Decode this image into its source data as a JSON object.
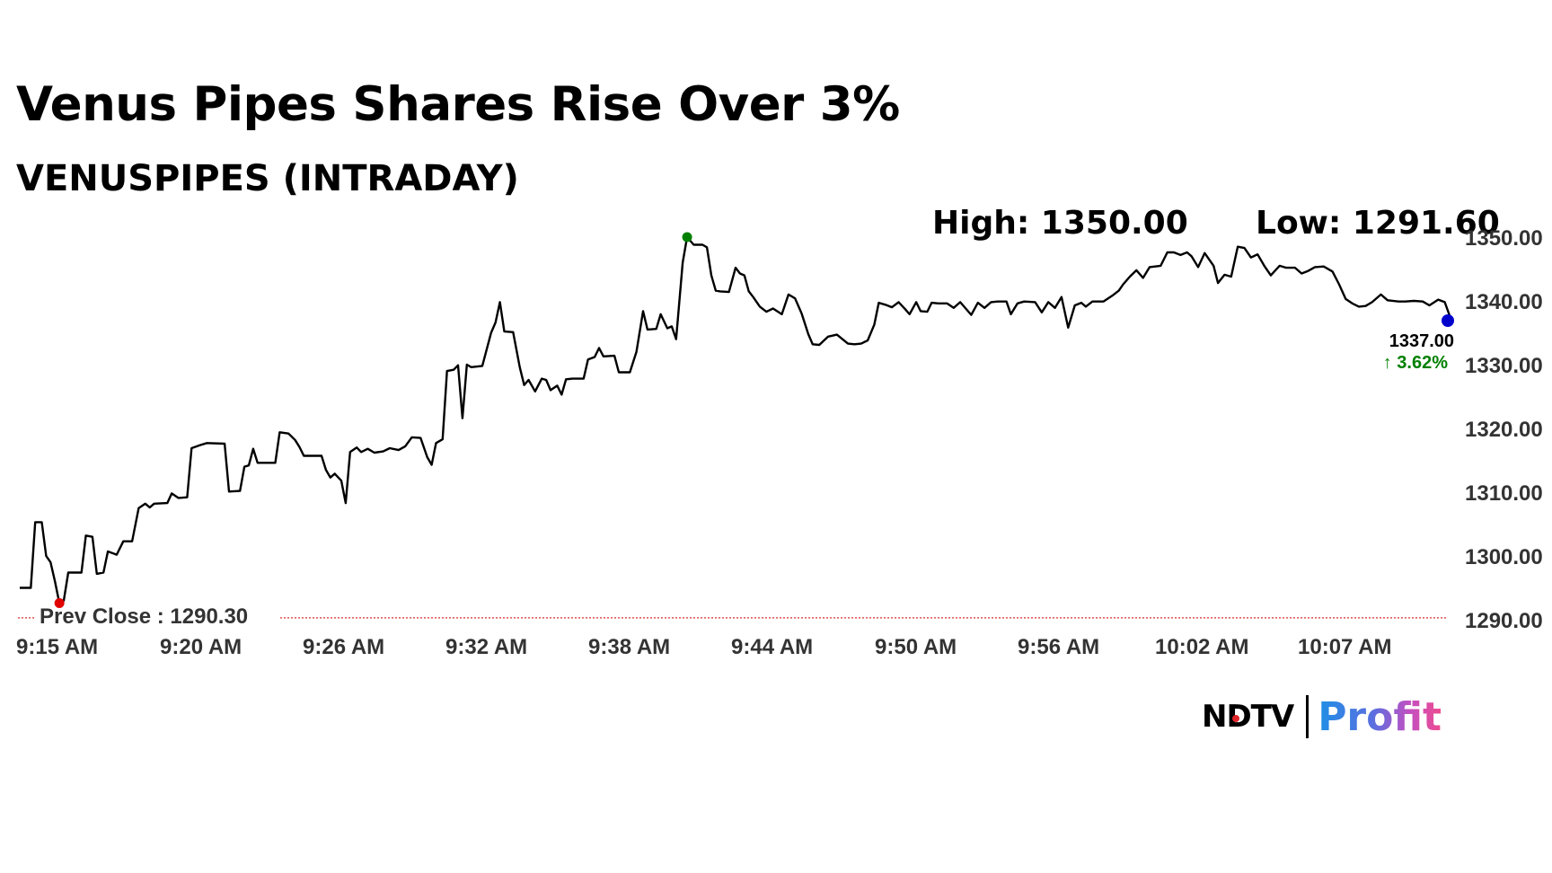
{
  "headline": "Venus Pipes Shares Rise Over 3%",
  "subheadline": "VENUSPIPES (INTRADAY)",
  "stats": {
    "high_label": "High: 1350.00",
    "low_label": "Low: 1291.60"
  },
  "last_price": {
    "value": "1337.00",
    "change": "3.62%",
    "arrow": "↑",
    "color": "#008000"
  },
  "prev_close": {
    "label": "Prev Close : 1290.30",
    "value": 1290.3,
    "line_color": "#e05050"
  },
  "brand": {
    "left": "NDTV",
    "right": "Profit"
  },
  "chart_data": {
    "type": "line",
    "title": "Venus Pipes Shares Rise Over 3%",
    "subtitle": "VENUSPIPES (INTRADAY)",
    "y_ticks": [
      "1350.00",
      "1340.00",
      "1330.00",
      "1320.00",
      "1310.00",
      "1300.00",
      "1290.00"
    ],
    "y_tick_values": [
      1350,
      1340,
      1330,
      1320,
      1310,
      1300,
      1290
    ],
    "x_ticks": [
      "9:15 AM",
      "9:20 AM",
      "9:26 AM",
      "9:32 AM",
      "9:38 AM",
      "9:44 AM",
      "9:50 AM",
      "9:56 AM",
      "10:02 AM",
      "10:07 AM"
    ],
    "ylim": [
      1290,
      1350
    ],
    "grid": false,
    "line_color": "#000000",
    "high_marker_color": "#008000",
    "low_marker_color": "#e00000",
    "last_marker_color": "#0000cc",
    "series": [
      {
        "points": [
          [
            0.0,
            1295.0
          ],
          [
            0.5,
            1295.0
          ],
          [
            0.7,
            1305.3
          ],
          [
            1.0,
            1305.3
          ],
          [
            1.2,
            1300.0
          ],
          [
            1.4,
            1299.0
          ],
          [
            1.6,
            1296.0
          ],
          [
            1.8,
            1292.6
          ],
          [
            2.0,
            1293.0
          ],
          [
            2.2,
            1297.4
          ],
          [
            2.8,
            1297.4
          ],
          [
            3.0,
            1303.2
          ],
          [
            3.3,
            1303.0
          ],
          [
            3.5,
            1297.2
          ],
          [
            3.8,
            1297.4
          ],
          [
            4.0,
            1300.7
          ],
          [
            4.4,
            1300.2
          ],
          [
            4.7,
            1302.3
          ],
          [
            5.1,
            1302.3
          ],
          [
            5.4,
            1307.5
          ],
          [
            5.7,
            1308.2
          ],
          [
            5.9,
            1307.6
          ],
          [
            6.1,
            1308.2
          ],
          [
            6.7,
            1308.3
          ],
          [
            6.9,
            1309.8
          ],
          [
            7.2,
            1309.1
          ],
          [
            7.6,
            1309.2
          ],
          [
            7.8,
            1316.9
          ],
          [
            8.2,
            1317.4
          ],
          [
            8.5,
            1317.7
          ],
          [
            9.3,
            1317.6
          ],
          [
            9.5,
            1310.1
          ],
          [
            10.0,
            1310.2
          ],
          [
            10.2,
            1314.0
          ],
          [
            10.4,
            1314.2
          ],
          [
            10.6,
            1316.8
          ],
          [
            10.8,
            1314.6
          ],
          [
            11.6,
            1314.6
          ],
          [
            11.8,
            1319.4
          ],
          [
            12.2,
            1319.2
          ],
          [
            12.5,
            1318.2
          ],
          [
            12.7,
            1317.1
          ],
          [
            12.9,
            1315.7
          ],
          [
            13.7,
            1315.7
          ],
          [
            13.9,
            1313.5
          ],
          [
            14.1,
            1312.3
          ],
          [
            14.3,
            1312.9
          ],
          [
            14.6,
            1311.8
          ],
          [
            14.8,
            1308.3
          ],
          [
            15.0,
            1316.3
          ],
          [
            15.3,
            1317.0
          ],
          [
            15.5,
            1316.3
          ],
          [
            15.8,
            1316.8
          ],
          [
            16.1,
            1316.2
          ],
          [
            16.5,
            1316.4
          ],
          [
            16.8,
            1316.9
          ],
          [
            17.2,
            1316.6
          ],
          [
            17.5,
            1317.2
          ],
          [
            17.8,
            1318.6
          ],
          [
            18.2,
            1318.5
          ],
          [
            18.5,
            1315.5
          ],
          [
            18.7,
            1314.3
          ],
          [
            18.9,
            1317.7
          ],
          [
            19.2,
            1318.3
          ],
          [
            19.4,
            1329.0
          ],
          [
            19.7,
            1329.2
          ],
          [
            19.9,
            1329.9
          ],
          [
            20.1,
            1321.6
          ],
          [
            20.3,
            1330.0
          ],
          [
            20.5,
            1329.6
          ],
          [
            21.0,
            1329.8
          ],
          [
            21.4,
            1335.0
          ],
          [
            21.6,
            1336.6
          ],
          [
            21.8,
            1339.8
          ],
          [
            22.0,
            1335.2
          ],
          [
            22.4,
            1335.1
          ],
          [
            22.7,
            1329.6
          ],
          [
            22.9,
            1326.8
          ],
          [
            23.1,
            1327.6
          ],
          [
            23.4,
            1325.8
          ],
          [
            23.7,
            1327.8
          ],
          [
            23.9,
            1327.6
          ],
          [
            24.1,
            1326.0
          ],
          [
            24.4,
            1326.7
          ],
          [
            24.6,
            1325.3
          ],
          [
            24.8,
            1327.7
          ],
          [
            25.1,
            1327.8
          ],
          [
            25.6,
            1327.8
          ],
          [
            25.8,
            1330.8
          ],
          [
            26.1,
            1331.2
          ],
          [
            26.3,
            1332.6
          ],
          [
            26.5,
            1331.3
          ],
          [
            27.0,
            1331.4
          ],
          [
            27.2,
            1328.8
          ],
          [
            27.7,
            1328.8
          ],
          [
            28.0,
            1332.0
          ],
          [
            28.3,
            1338.4
          ],
          [
            28.5,
            1335.5
          ],
          [
            28.9,
            1335.6
          ],
          [
            29.1,
            1337.9
          ],
          [
            29.4,
            1335.7
          ],
          [
            29.6,
            1336.0
          ],
          [
            29.8,
            1334.0
          ],
          [
            30.1,
            1346.0
          ],
          [
            30.3,
            1350.0
          ],
          [
            30.6,
            1348.8
          ],
          [
            31.0,
            1348.8
          ],
          [
            31.2,
            1348.4
          ],
          [
            31.4,
            1344.0
          ],
          [
            31.6,
            1341.6
          ],
          [
            31.8,
            1341.5
          ],
          [
            32.2,
            1341.4
          ],
          [
            32.5,
            1345.2
          ],
          [
            32.7,
            1344.3
          ],
          [
            32.9,
            1344.0
          ],
          [
            33.1,
            1341.5
          ],
          [
            33.3,
            1340.6
          ],
          [
            33.6,
            1339.1
          ],
          [
            33.9,
            1338.3
          ],
          [
            34.2,
            1338.8
          ],
          [
            34.6,
            1337.9
          ],
          [
            34.9,
            1341.0
          ],
          [
            35.2,
            1340.4
          ],
          [
            35.5,
            1338.0
          ],
          [
            35.8,
            1334.8
          ],
          [
            36.0,
            1333.2
          ],
          [
            36.3,
            1333.1
          ],
          [
            36.7,
            1334.4
          ],
          [
            37.1,
            1334.7
          ],
          [
            37.6,
            1333.3
          ],
          [
            37.9,
            1333.2
          ],
          [
            38.2,
            1333.3
          ],
          [
            38.5,
            1333.8
          ],
          [
            38.8,
            1336.3
          ],
          [
            39.0,
            1339.7
          ],
          [
            39.3,
            1339.4
          ],
          [
            39.6,
            1339.0
          ],
          [
            39.9,
            1339.8
          ],
          [
            40.2,
            1338.7
          ],
          [
            40.4,
            1337.9
          ],
          [
            40.7,
            1339.8
          ],
          [
            40.9,
            1338.4
          ],
          [
            41.2,
            1338.3
          ],
          [
            41.4,
            1339.7
          ],
          [
            41.7,
            1339.6
          ],
          [
            42.1,
            1339.6
          ],
          [
            42.4,
            1338.9
          ],
          [
            42.7,
            1339.8
          ],
          [
            43.2,
            1337.8
          ],
          [
            43.5,
            1339.7
          ],
          [
            43.8,
            1338.9
          ],
          [
            44.1,
            1339.8
          ],
          [
            44.4,
            1339.9
          ],
          [
            44.8,
            1339.9
          ],
          [
            45.0,
            1337.9
          ],
          [
            45.3,
            1339.6
          ],
          [
            45.6,
            1339.9
          ],
          [
            46.1,
            1339.8
          ],
          [
            46.4,
            1338.2
          ],
          [
            46.7,
            1339.8
          ],
          [
            47.0,
            1338.9
          ],
          [
            47.3,
            1340.6
          ],
          [
            47.6,
            1335.8
          ],
          [
            47.9,
            1339.3
          ],
          [
            48.2,
            1339.7
          ],
          [
            48.4,
            1339.1
          ],
          [
            48.7,
            1339.9
          ],
          [
            49.2,
            1339.9
          ],
          [
            49.6,
            1340.8
          ],
          [
            49.9,
            1341.6
          ],
          [
            50.1,
            1342.6
          ],
          [
            50.4,
            1343.8
          ],
          [
            50.7,
            1344.8
          ],
          [
            51.0,
            1343.6
          ],
          [
            51.3,
            1345.3
          ],
          [
            51.8,
            1345.5
          ],
          [
            52.1,
            1347.6
          ],
          [
            52.4,
            1347.6
          ],
          [
            52.7,
            1347.2
          ],
          [
            53.0,
            1347.6
          ],
          [
            53.2,
            1347.0
          ],
          [
            53.5,
            1345.3
          ],
          [
            53.8,
            1347.5
          ],
          [
            54.2,
            1345.5
          ],
          [
            54.4,
            1342.8
          ],
          [
            54.7,
            1344.1
          ],
          [
            55.0,
            1343.8
          ],
          [
            55.3,
            1348.5
          ],
          [
            55.6,
            1348.3
          ],
          [
            55.9,
            1346.8
          ],
          [
            56.2,
            1347.3
          ],
          [
            56.5,
            1345.5
          ],
          [
            56.8,
            1344.0
          ],
          [
            57.2,
            1345.5
          ],
          [
            57.5,
            1345.2
          ],
          [
            57.9,
            1345.2
          ],
          [
            58.2,
            1344.3
          ],
          [
            58.5,
            1344.7
          ],
          [
            58.8,
            1345.3
          ],
          [
            59.2,
            1345.4
          ],
          [
            59.6,
            1344.6
          ],
          [
            59.9,
            1342.6
          ],
          [
            60.2,
            1340.3
          ],
          [
            60.5,
            1339.6
          ],
          [
            60.8,
            1339.1
          ],
          [
            61.1,
            1339.2
          ],
          [
            61.4,
            1339.8
          ],
          [
            61.8,
            1341.0
          ],
          [
            62.1,
            1340.1
          ],
          [
            62.6,
            1339.9
          ],
          [
            62.9,
            1339.9
          ],
          [
            63.3,
            1340.0
          ],
          [
            63.7,
            1339.9
          ],
          [
            64.0,
            1339.3
          ],
          [
            64.4,
            1340.2
          ],
          [
            64.7,
            1339.8
          ],
          [
            65.0,
            1336.9
          ]
        ]
      }
    ]
  }
}
